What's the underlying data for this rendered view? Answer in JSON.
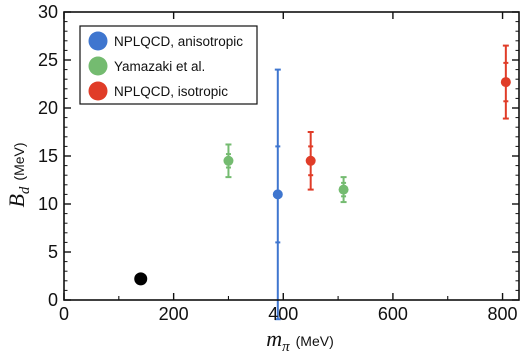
{
  "chart_data": {
    "type": "scatter",
    "xlim": [
      0,
      830
    ],
    "ylim": [
      0,
      30
    ],
    "x_ticks": [
      0,
      200,
      400,
      600,
      800
    ],
    "y_ticks": [
      0,
      5,
      10,
      15,
      20,
      25,
      30
    ],
    "xlabel": {
      "symbol": "m",
      "subscript": "π",
      "unit": "(MeV)"
    },
    "ylabel": {
      "symbol": "B",
      "subscript": "d",
      "unit": "(MeV)"
    },
    "legend_position": "top-left",
    "series": [
      {
        "name": "NPLQCD, anisotropic",
        "color": "#3f76cf",
        "points": [
          {
            "x": 390,
            "y": 11.0,
            "err_inner": 5.0,
            "err_outer": 13.0
          }
        ]
      },
      {
        "name": "Yamazaki et al.",
        "color": "#74bb70",
        "points": [
          {
            "x": 300,
            "y": 14.5,
            "err_inner": 0.7,
            "err_outer": 1.7
          },
          {
            "x": 510,
            "y": 11.5,
            "err_inner": 0.7,
            "err_outer": 1.3
          }
        ]
      },
      {
        "name": "NPLQCD, isotropic",
        "color": "#e03c28",
        "points": [
          {
            "x": 450,
            "y": 14.5,
            "err_inner": 1.5,
            "err_outer": 3.0
          },
          {
            "x": 806,
            "y": 22.7,
            "err_inner": 2.0,
            "err_outer": 3.8
          }
        ]
      }
    ],
    "extra_points": [
      {
        "x": 140,
        "y": 2.2,
        "color": "#000000"
      }
    ]
  }
}
